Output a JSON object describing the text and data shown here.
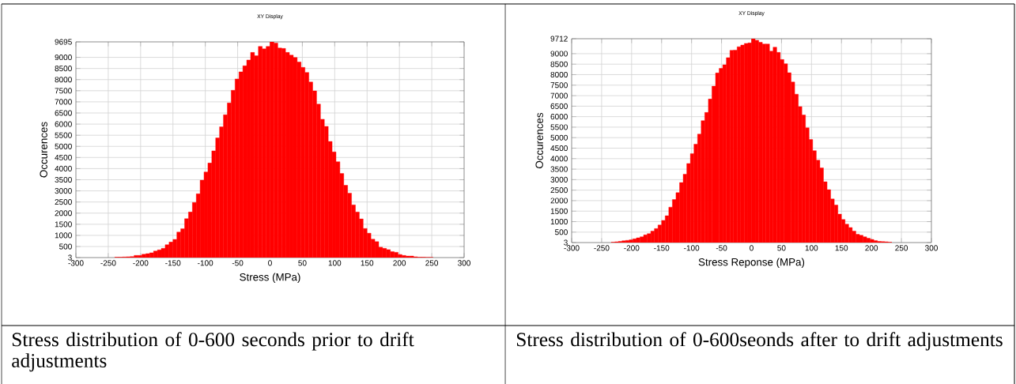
{
  "chart_data": [
    {
      "type": "histogram",
      "title": "XY Display",
      "xlabel": "Stress (MPa)",
      "ylabel": "Occurences",
      "color": "#ff0000",
      "grid": true,
      "annotations": [
        "Stress distribution of 0-600 seconds prior to drift adjustments"
      ],
      "xlim": [
        -300,
        300
      ],
      "xticks": [
        -300,
        -250,
        -200,
        -150,
        -100,
        -50,
        0,
        50,
        100,
        150,
        200,
        250,
        300
      ],
      "ylim": [
        3,
        9695
      ],
      "yticks": [
        3,
        500,
        1000,
        1500,
        2000,
        2500,
        3000,
        3500,
        4000,
        4500,
        5000,
        5500,
        6000,
        6500,
        7000,
        7500,
        8000,
        8500,
        9000,
        9695
      ],
      "bins": [
        -240,
        -234,
        -228,
        -222,
        -216,
        -210,
        -204,
        -198,
        -192,
        -186,
        -180,
        -174,
        -168,
        -162,
        -156,
        -150,
        -144,
        -138,
        -132,
        -126,
        -120,
        -114,
        -108,
        -102,
        -96,
        -90,
        -84,
        -78,
        -72,
        -66,
        -60,
        -54,
        -48,
        -42,
        -36,
        -30,
        -24,
        -18,
        -12,
        -6,
        0,
        6,
        12,
        18,
        24,
        30,
        36,
        42,
        48,
        54,
        60,
        66,
        72,
        78,
        84,
        90,
        96,
        102,
        108,
        114,
        120,
        126,
        132,
        138,
        144,
        150,
        156,
        162,
        168,
        174,
        180,
        186,
        192,
        198,
        204,
        210,
        216,
        222,
        228,
        234,
        240,
        246,
        252
      ],
      "values": [
        20,
        20,
        30,
        40,
        50,
        100,
        100,
        150,
        180,
        220,
        300,
        350,
        420,
        580,
        700,
        820,
        1150,
        1300,
        1750,
        2050,
        2480,
        2870,
        3480,
        3850,
        4250,
        4800,
        5380,
        5880,
        6420,
        6950,
        7520,
        8030,
        8350,
        8620,
        8880,
        9220,
        9070,
        9490,
        9380,
        9490,
        9695,
        9640,
        9420,
        9400,
        9220,
        9100,
        8990,
        8790,
        8550,
        8320,
        7890,
        7490,
        6900,
        6220,
        5900,
        5220,
        4750,
        4310,
        3780,
        3250,
        2900,
        2370,
        2050,
        1740,
        1310,
        1100,
        830,
        720,
        470,
        420,
        360,
        270,
        240,
        140,
        100,
        70,
        70,
        40,
        20,
        20,
        10,
        10
      ]
    },
    {
      "type": "histogram",
      "title": "XY Display",
      "xlabel": "Stress Reponse (MPa)",
      "ylabel": "Occurences",
      "color": "#ff0000",
      "grid": true,
      "annotations": [
        "Stress distribution of 0-600seonds after to drift adjustments"
      ],
      "xlim": [
        -300,
        300
      ],
      "xticks": [
        -300,
        -250,
        -200,
        -150,
        -100,
        -50,
        0,
        50,
        100,
        150,
        200,
        250,
        300
      ],
      "ylim": [
        3,
        9712
      ],
      "yticks": [
        3,
        500,
        1000,
        1500,
        2000,
        2500,
        3000,
        3500,
        4000,
        4500,
        5000,
        5500,
        6000,
        6500,
        7000,
        7500,
        8000,
        8500,
        9000,
        9712
      ],
      "bins": [
        -234,
        -228,
        -222,
        -216,
        -210,
        -204,
        -198,
        -192,
        -186,
        -180,
        -174,
        -168,
        -162,
        -156,
        -150,
        -144,
        -138,
        -132,
        -126,
        -120,
        -114,
        -108,
        -102,
        -96,
        -90,
        -84,
        -78,
        -72,
        -66,
        -60,
        -54,
        -48,
        -42,
        -36,
        -30,
        -24,
        -18,
        -12,
        -6,
        0,
        6,
        12,
        18,
        24,
        30,
        36,
        42,
        48,
        54,
        60,
        66,
        72,
        78,
        84,
        90,
        96,
        102,
        108,
        114,
        120,
        126,
        132,
        138,
        144,
        150,
        156,
        162,
        168,
        174,
        180,
        186,
        192,
        198,
        204,
        210,
        216,
        222,
        228,
        234
      ],
      "values": [
        20,
        40,
        60,
        90,
        110,
        130,
        180,
        230,
        280,
        370,
        430,
        550,
        670,
        840,
        1060,
        1280,
        1690,
        2050,
        2380,
        2860,
        3260,
        3770,
        4240,
        4690,
        5170,
        5810,
        6200,
        6840,
        7450,
        8080,
        8300,
        8470,
        8810,
        9160,
        9170,
        9330,
        9410,
        9490,
        9510,
        9712,
        9640,
        9540,
        9460,
        9460,
        9120,
        9310,
        9060,
        8720,
        8520,
        8090,
        7650,
        7070,
        6480,
        6080,
        5470,
        4910,
        4380,
        3930,
        3560,
        2900,
        2520,
        2080,
        1790,
        1360,
        1100,
        880,
        720,
        550,
        400,
        350,
        280,
        210,
        150,
        100,
        60,
        50,
        40,
        20
      ]
    }
  ]
}
